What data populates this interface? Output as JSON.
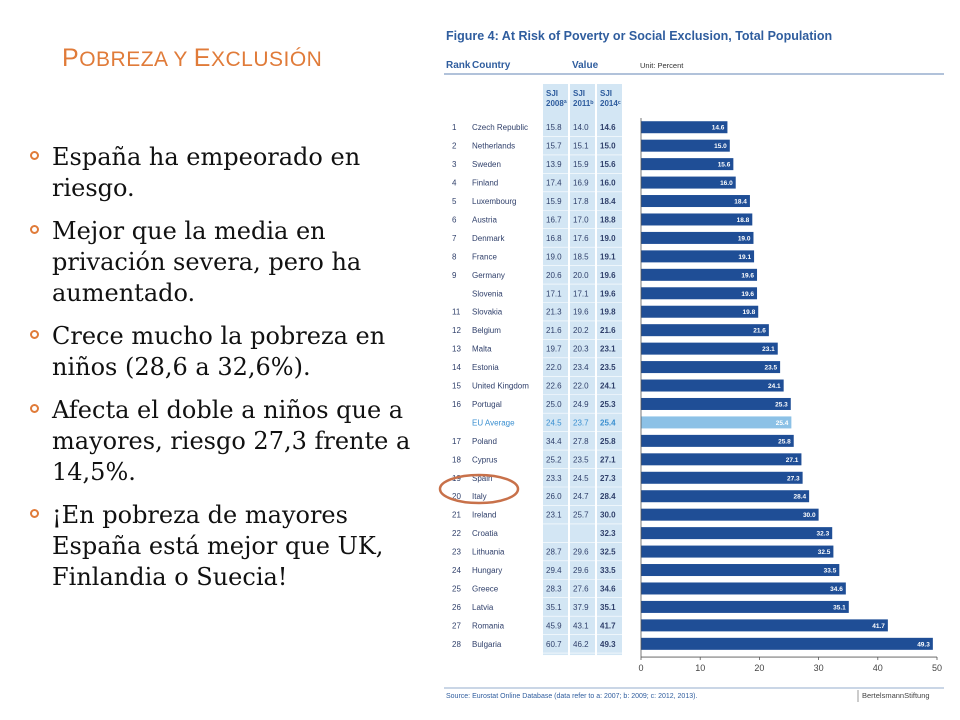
{
  "slide": {
    "title_parts": [
      {
        "text": "P",
        "big": true
      },
      {
        "text": "OBREZA Y ",
        "big": false
      },
      {
        "text": "E",
        "big": true
      },
      {
        "text": "XCLUSIÓN",
        "big": false
      }
    ],
    "bullets": [
      "España ha empeorado en riesgo.",
      "Mejor que la media en privación severa, pero ha aumentado.",
      "Crece mucho la pobreza en niños (28,6 a 32,6%).",
      "Afecta el doble a niños que a mayores, riesgo 27,3 frente a 14,5%.",
      "¡En pobreza de mayores España está mejor que UK, Finlandia o Suecia!"
    ]
  },
  "colors": {
    "accent": "#e07b39",
    "bar": "#1f4e96",
    "bar_eu": "#8cc1e6",
    "column_shade": "#d3e6f4",
    "title_blue": "#2f5d9e",
    "highlight_circle": "#c8714a"
  },
  "chart_data": {
    "type": "bar",
    "title": "Figure 4: At Risk of Poverty or Social Exclusion, Total Population",
    "unit": "Unit: Percent",
    "headers": {
      "rank": "Rank",
      "country": "Country",
      "value": "Value"
    },
    "column_headers": [
      [
        "SJI",
        "2008ª"
      ],
      [
        "SJI",
        "2011ᵇ"
      ],
      [
        "SJI",
        "2014ᶜ"
      ]
    ],
    "rows": [
      {
        "rank": "1",
        "country": "Czech Republic",
        "v2008": "15.8",
        "v2011": "14.0",
        "v2014": "14.6",
        "value": 14.6
      },
      {
        "rank": "2",
        "country": "Netherlands",
        "v2008": "15.7",
        "v2011": "15.1",
        "v2014": "15.0",
        "value": 15.0
      },
      {
        "rank": "3",
        "country": "Sweden",
        "v2008": "13.9",
        "v2011": "15.9",
        "v2014": "15.6",
        "value": 15.6
      },
      {
        "rank": "4",
        "country": "Finland",
        "v2008": "17.4",
        "v2011": "16.9",
        "v2014": "16.0",
        "value": 16.0
      },
      {
        "rank": "5",
        "country": "Luxembourg",
        "v2008": "15.9",
        "v2011": "17.8",
        "v2014": "18.4",
        "value": 18.4
      },
      {
        "rank": "6",
        "country": "Austria",
        "v2008": "16.7",
        "v2011": "17.0",
        "v2014": "18.8",
        "value": 18.8
      },
      {
        "rank": "7",
        "country": "Denmark",
        "v2008": "16.8",
        "v2011": "17.6",
        "v2014": "19.0",
        "value": 19.0
      },
      {
        "rank": "8",
        "country": "France",
        "v2008": "19.0",
        "v2011": "18.5",
        "v2014": "19.1",
        "value": 19.1
      },
      {
        "rank": "9",
        "country": "Germany",
        "v2008": "20.6",
        "v2011": "20.0",
        "v2014": "19.6",
        "value": 19.6
      },
      {
        "rank": "",
        "country": "Slovenia",
        "v2008": "17.1",
        "v2011": "17.1",
        "v2014": "19.6",
        "value": 19.6
      },
      {
        "rank": "11",
        "country": "Slovakia",
        "v2008": "21.3",
        "v2011": "19.6",
        "v2014": "19.8",
        "value": 19.8
      },
      {
        "rank": "12",
        "country": "Belgium",
        "v2008": "21.6",
        "v2011": "20.2",
        "v2014": "21.6",
        "value": 21.6
      },
      {
        "rank": "13",
        "country": "Malta",
        "v2008": "19.7",
        "v2011": "20.3",
        "v2014": "23.1",
        "value": 23.1
      },
      {
        "rank": "14",
        "country": "Estonia",
        "v2008": "22.0",
        "v2011": "23.4",
        "v2014": "23.5",
        "value": 23.5
      },
      {
        "rank": "15",
        "country": "United Kingdom",
        "v2008": "22.6",
        "v2011": "22.0",
        "v2014": "24.1",
        "value": 24.1
      },
      {
        "rank": "16",
        "country": "Portugal",
        "v2008": "25.0",
        "v2011": "24.9",
        "v2014": "25.3",
        "value": 25.3
      },
      {
        "rank": "",
        "country": "EU Average",
        "v2008": "24.5",
        "v2011": "23.7",
        "v2014": "25.4",
        "value": 25.4,
        "eu": true
      },
      {
        "rank": "17",
        "country": "Poland",
        "v2008": "34.4",
        "v2011": "27.8",
        "v2014": "25.8",
        "value": 25.8
      },
      {
        "rank": "18",
        "country": "Cyprus",
        "v2008": "25.2",
        "v2011": "23.5",
        "v2014": "27.1",
        "value": 27.1
      },
      {
        "rank": "19",
        "country": "Spain",
        "v2008": "23.3",
        "v2011": "24.5",
        "v2014": "27.3",
        "value": 27.3,
        "highlight": true
      },
      {
        "rank": "20",
        "country": "Italy",
        "v2008": "26.0",
        "v2011": "24.7",
        "v2014": "28.4",
        "value": 28.4
      },
      {
        "rank": "21",
        "country": "Ireland",
        "v2008": "23.1",
        "v2011": "25.7",
        "v2014": "30.0",
        "value": 30.0
      },
      {
        "rank": "22",
        "country": "Croatia",
        "v2008": "",
        "v2011": "",
        "v2014": "32.3",
        "value": 32.3
      },
      {
        "rank": "23",
        "country": "Lithuania",
        "v2008": "28.7",
        "v2011": "29.6",
        "v2014": "32.5",
        "value": 32.5
      },
      {
        "rank": "24",
        "country": "Hungary",
        "v2008": "29.4",
        "v2011": "29.6",
        "v2014": "33.5",
        "value": 33.5
      },
      {
        "rank": "25",
        "country": "Greece",
        "v2008": "28.3",
        "v2011": "27.6",
        "v2014": "34.6",
        "value": 34.6
      },
      {
        "rank": "26",
        "country": "Latvia",
        "v2008": "35.1",
        "v2011": "37.9",
        "v2014": "35.1",
        "value": 35.1
      },
      {
        "rank": "27",
        "country": "Romania",
        "v2008": "45.9",
        "v2011": "43.1",
        "v2014": "41.7",
        "value": 41.7
      },
      {
        "rank": "28",
        "country": "Bulgaria",
        "v2008": "60.7",
        "v2011": "46.2",
        "v2014": "49.3",
        "value": 49.3
      }
    ],
    "xlim": [
      0,
      50
    ],
    "xticks": [
      0,
      10,
      20,
      30,
      40,
      50
    ],
    "source": "Source: Eurostat Online Database (data refer to a: 2007; b: 2009; c: 2012, 2013).",
    "publisher": "BertelsmannStiftung"
  }
}
